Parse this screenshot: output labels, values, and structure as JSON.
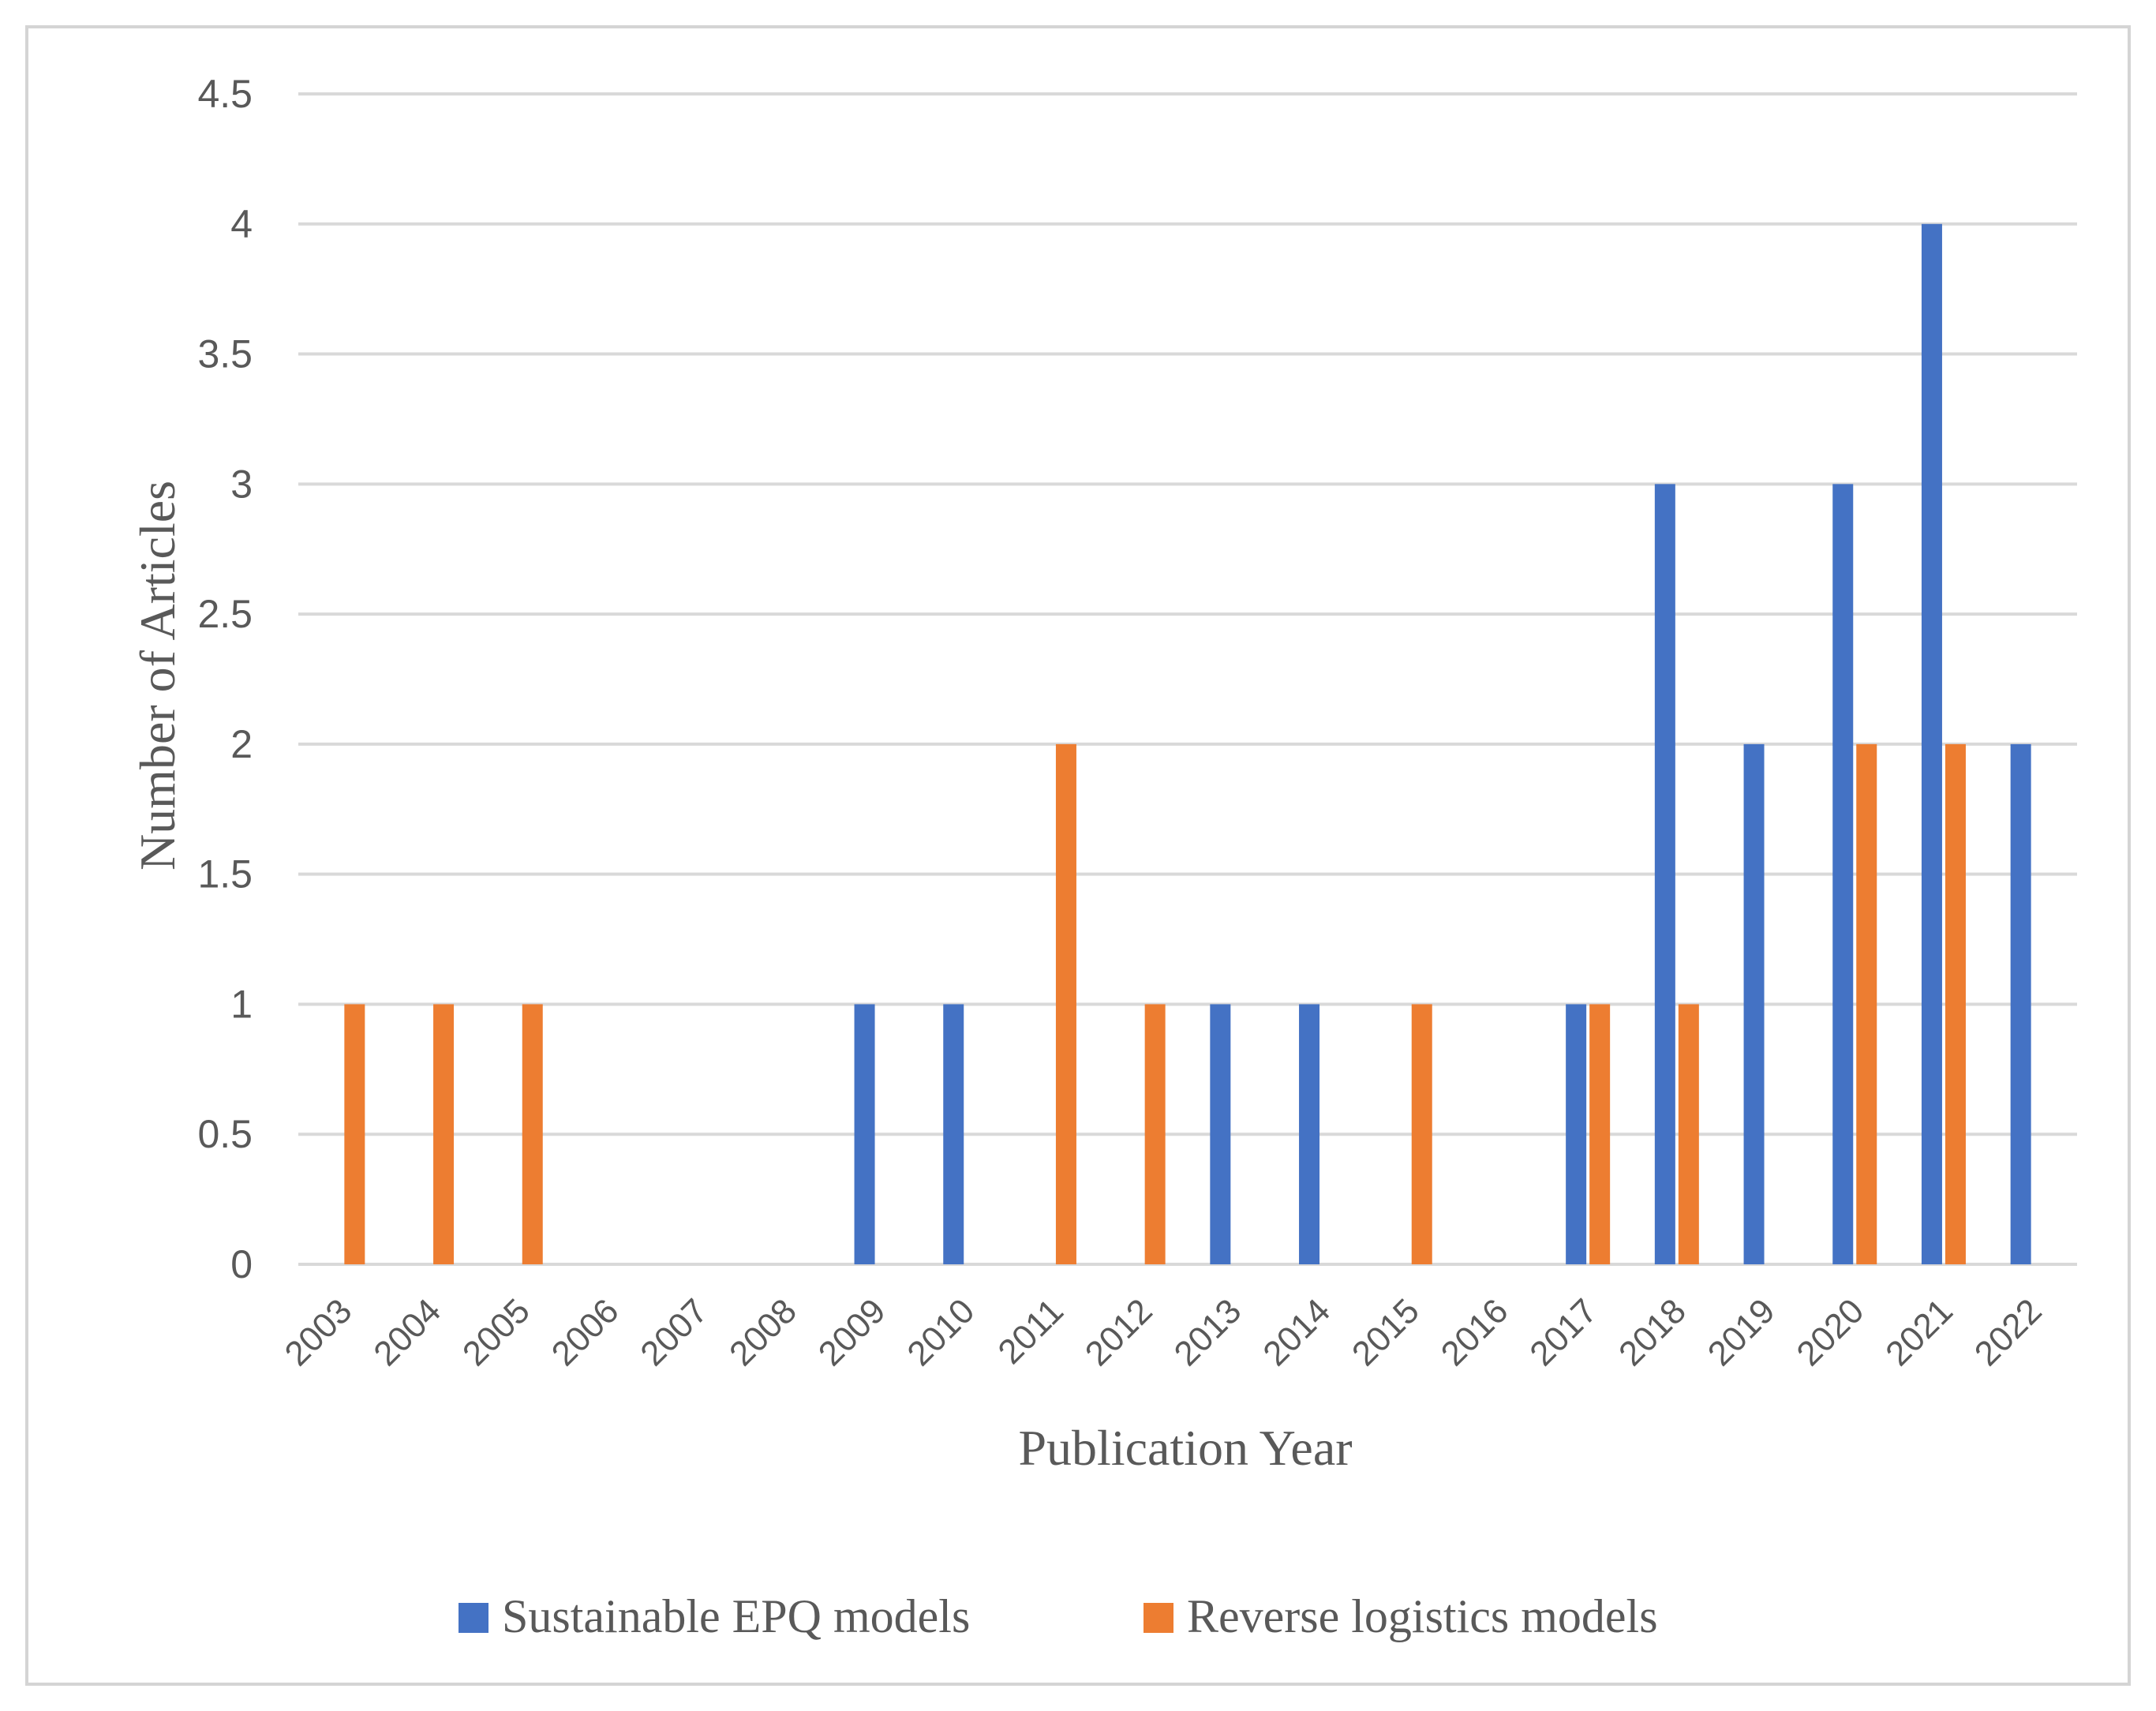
{
  "chart_data": {
    "type": "bar",
    "title": "",
    "xlabel": "Publication Year",
    "ylabel": "Number of Articles",
    "ylim": [
      0,
      4.5
    ],
    "yticks": [
      "0",
      "0.5",
      "1",
      "1.5",
      "2",
      "2.5",
      "3",
      "3.5",
      "4",
      "4.5"
    ],
    "ytick_values": [
      0,
      0.5,
      1,
      1.5,
      2,
      2.5,
      3,
      3.5,
      4,
      4.5
    ],
    "grid": true,
    "legend_position": "bottom",
    "categories": [
      "2003",
      "2004",
      "2005",
      "2006",
      "2007",
      "2008",
      "2009",
      "2010",
      "2011",
      "2012",
      "2013",
      "2014",
      "2015",
      "2016",
      "2017",
      "2018",
      "2019",
      "2020",
      "2021",
      "2022"
    ],
    "series": [
      {
        "name": "Sustainable EPQ models",
        "color": "#4472c4",
        "values": [
          0,
          0,
          0,
          0,
          0,
          0,
          1,
          1,
          0,
          0,
          1,
          1,
          0,
          0,
          1,
          3,
          2,
          3,
          4,
          2
        ]
      },
      {
        "name": "Reverse logistics models",
        "color": "#ed7d31",
        "values": [
          1,
          1,
          1,
          0,
          0,
          0,
          0,
          0,
          2,
          1,
          0,
          0,
          1,
          0,
          1,
          1,
          0,
          2,
          2,
          0
        ]
      }
    ]
  },
  "colors": {
    "grid": "#d9d9d9",
    "text": "#595959",
    "frame": "#d4d4d4"
  }
}
